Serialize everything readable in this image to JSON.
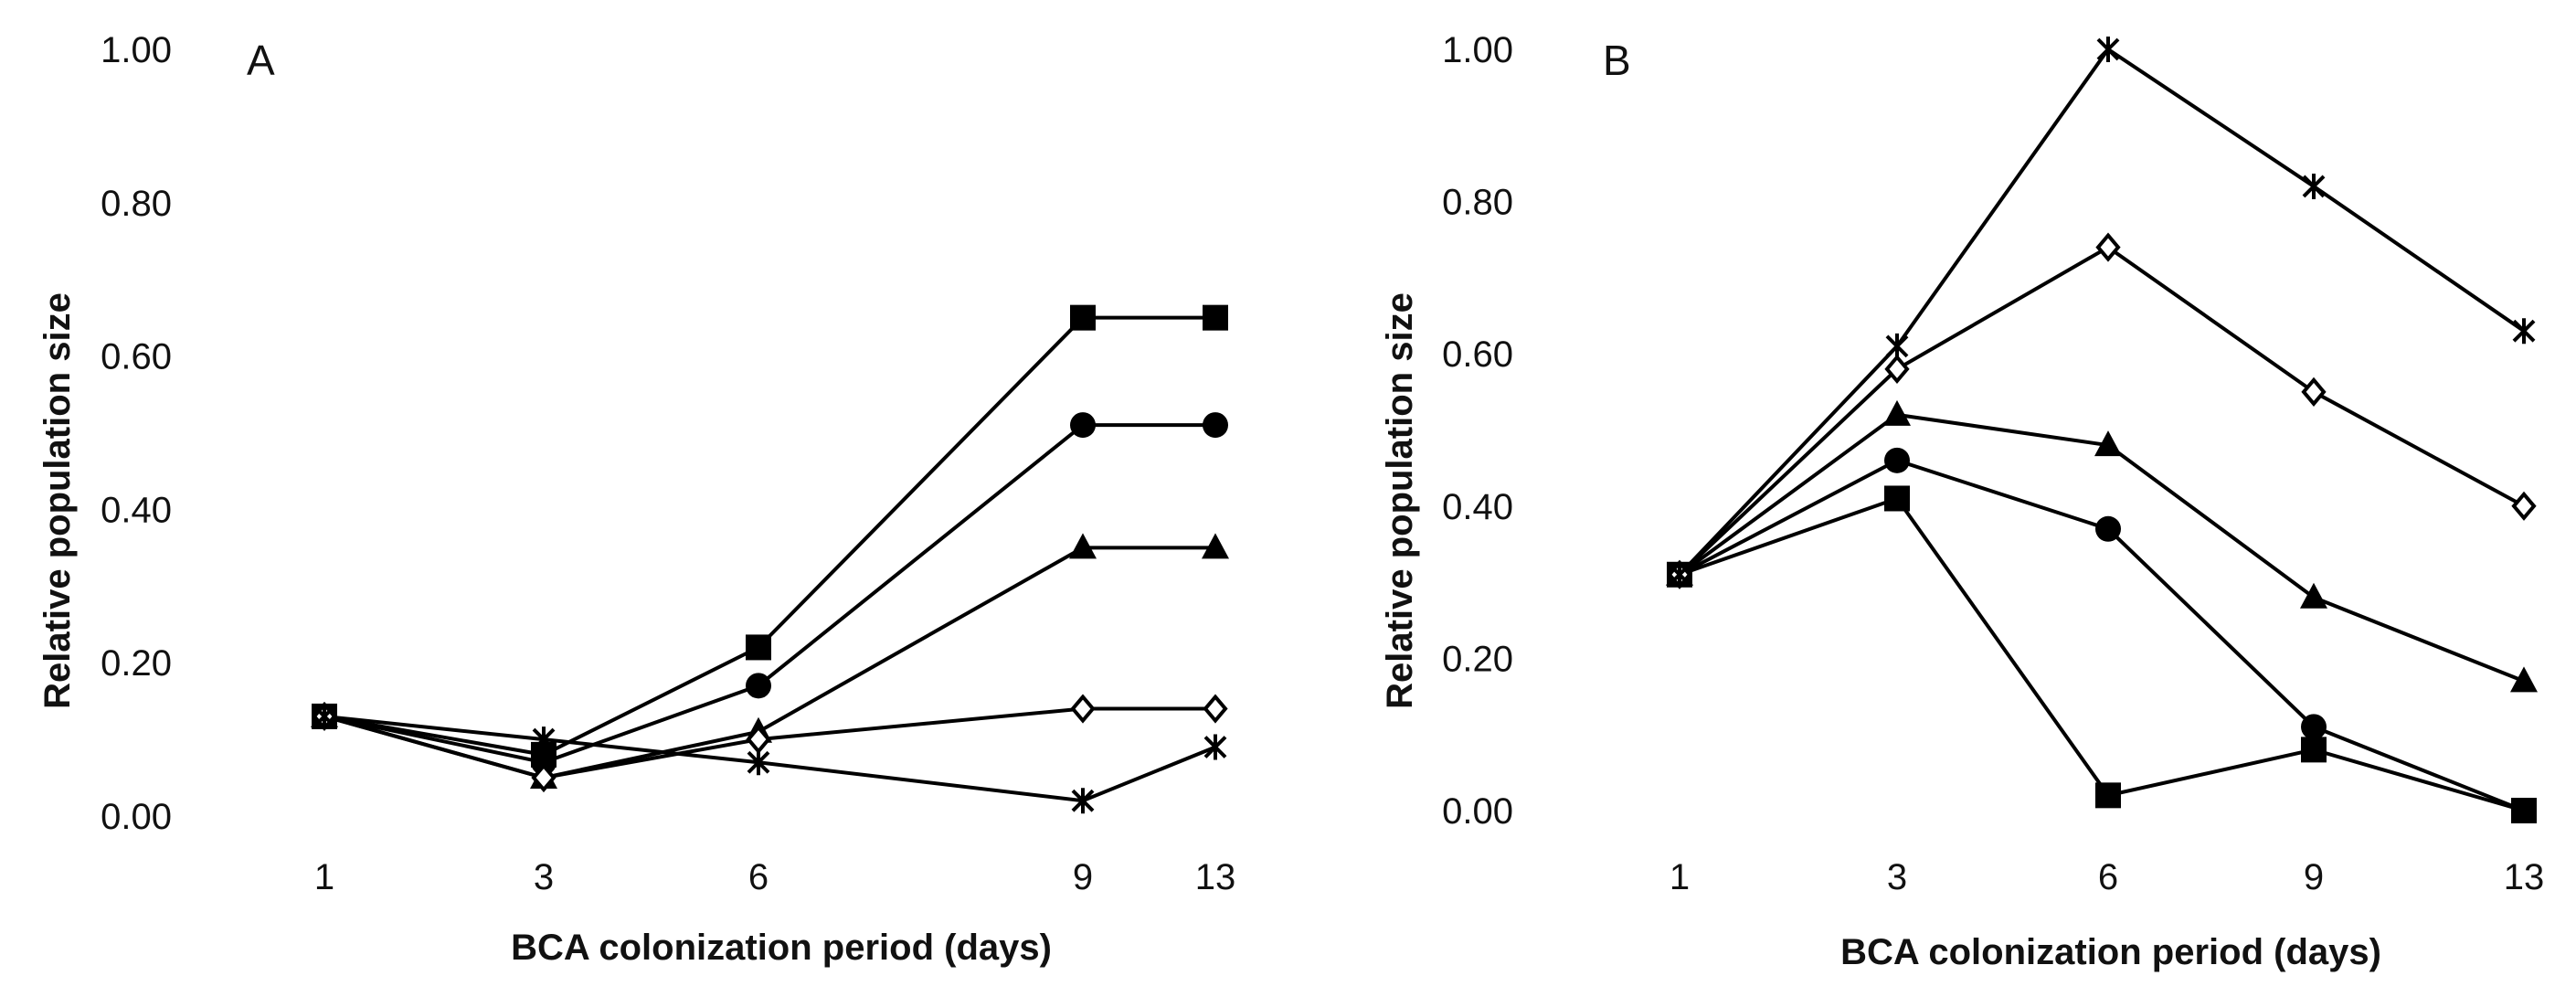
{
  "chart_data": [
    {
      "type": "line",
      "panel_label": "A",
      "xlabel": "BCA colonization period (days)",
      "ylabel": "Relative population size",
      "categories": [
        "1",
        "3",
        "6",
        "9",
        "13"
      ],
      "y_ticks": [
        "0.00",
        "0.20",
        "0.40",
        "0.60",
        "0.80",
        "1.00"
      ],
      "ylim": [
        0,
        1
      ],
      "grid": false,
      "series": [
        {
          "marker": "square",
          "values": [
            0.13,
            0.08,
            0.22,
            0.65,
            0.65
          ]
        },
        {
          "marker": "circle",
          "values": [
            0.13,
            0.07,
            0.17,
            0.51,
            0.51
          ]
        },
        {
          "marker": "triangle",
          "values": [
            0.13,
            0.05,
            0.11,
            0.35,
            0.35
          ]
        },
        {
          "marker": "diamond-open",
          "values": [
            0.13,
            0.05,
            0.1,
            0.14,
            0.14
          ]
        },
        {
          "marker": "asterisk",
          "values": [
            0.13,
            0.1,
            0.07,
            0.02,
            0.09
          ]
        }
      ]
    },
    {
      "type": "line",
      "panel_label": "B",
      "xlabel": "BCA colonization period (days)",
      "ylabel": "Relative population size",
      "categories": [
        "1",
        "3",
        "6",
        "9",
        "13"
      ],
      "y_ticks": [
        "0.00",
        "0.20",
        "0.40",
        "0.60",
        "0.80",
        "1.00"
      ],
      "ylim": [
        0,
        1
      ],
      "grid": false,
      "series": [
        {
          "marker": "square",
          "values": [
            0.31,
            0.41,
            0.02,
            0.08,
            0.0
          ]
        },
        {
          "marker": "circle",
          "values": [
            0.31,
            0.46,
            0.37,
            0.11,
            0.0
          ]
        },
        {
          "marker": "triangle",
          "values": [
            0.31,
            0.52,
            0.48,
            0.28,
            0.17
          ]
        },
        {
          "marker": "diamond-open",
          "values": [
            0.31,
            0.58,
            0.74,
            0.55,
            0.4
          ]
        },
        {
          "marker": "asterisk",
          "values": [
            0.31,
            0.61,
            1.0,
            0.82,
            0.63
          ]
        }
      ]
    }
  ]
}
